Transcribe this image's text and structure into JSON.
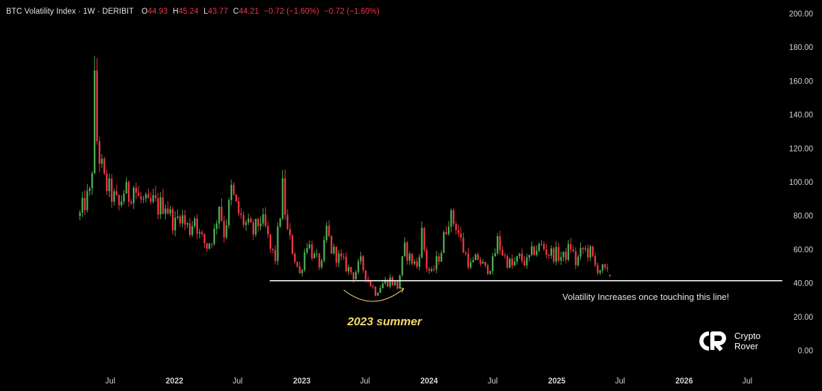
{
  "header": {
    "title": "BTC Volatility Index · 1W · DERIBIT",
    "open_label": "O",
    "open": "44.93",
    "high_label": "H",
    "high": "45.24",
    "low_label": "L",
    "low": "43.77",
    "close_label": "C",
    "close": "44.21",
    "change": "−0.72 (−1.60%)",
    "change2": "−0.72 (−1.60%)"
  },
  "annotations": {
    "support_note": "Volatility Increases once touching this line!",
    "summer_label": "2023 summer"
  },
  "logo": {
    "line1": "Crypto",
    "line2": "Rover",
    "icon": "crypto-rover-logo-icon"
  },
  "colors": {
    "up": "#4caf50",
    "down": "#f23645",
    "background": "#000000",
    "support_line": "#ffffff",
    "summer_label": "#f5d76e",
    "arrow": "#f5d76e"
  },
  "chart_data": {
    "type": "candlestick",
    "timeframe": "1W",
    "ylim": [
      0,
      200
    ],
    "y_ticks": [
      "0.00",
      "20.00",
      "40.00",
      "60.00",
      "80.00",
      "100.00",
      "120.00",
      "140.00",
      "160.00",
      "180.00",
      "200.00"
    ],
    "x_ticks": [
      "Jul",
      "2022",
      "Jul",
      "2023",
      "Jul",
      "2024",
      "Jul",
      "2025",
      "Jul",
      "2026",
      "Jul"
    ],
    "x_tick_values": [
      "2021-07",
      "2022-01",
      "2022-07",
      "2023-01",
      "2023-07",
      "2024-01",
      "2024-07",
      "2025-01",
      "2025-07",
      "2026-01",
      "2026-07"
    ],
    "support_level": 41.5,
    "support_range": [
      "2022-10",
      "2026-11"
    ],
    "last_close": 44.21,
    "closes": [
      [
        "2021-04-05",
        80
      ],
      [
        "2021-04-19",
        88
      ],
      [
        "2021-05-03",
        92
      ],
      [
        "2021-05-10",
        110
      ],
      [
        "2021-05-17",
        157
      ],
      [
        "2021-05-24",
        125
      ],
      [
        "2021-05-31",
        115
      ],
      [
        "2021-06-14",
        100
      ],
      [
        "2021-06-28",
        95
      ],
      [
        "2021-07-12",
        90
      ],
      [
        "2021-07-26",
        85
      ],
      [
        "2021-08-09",
        95
      ],
      [
        "2021-08-23",
        92
      ],
      [
        "2021-09-06",
        98
      ],
      [
        "2021-09-20",
        90
      ],
      [
        "2021-10-04",
        88
      ],
      [
        "2021-10-18",
        85
      ],
      [
        "2021-11-01",
        88
      ],
      [
        "2021-11-15",
        85
      ],
      [
        "2021-12-06",
        88
      ],
      [
        "2021-12-20",
        80
      ],
      [
        "2022-01-03",
        75
      ],
      [
        "2022-01-17",
        82
      ],
      [
        "2022-01-31",
        75
      ],
      [
        "2022-02-14",
        72
      ],
      [
        "2022-02-28",
        80
      ],
      [
        "2022-03-14",
        68
      ],
      [
        "2022-04-04",
        62
      ],
      [
        "2022-04-25",
        70
      ],
      [
        "2022-05-09",
        88
      ],
      [
        "2022-05-23",
        70
      ],
      [
        "2022-06-06",
        85
      ],
      [
        "2022-06-13",
        95
      ],
      [
        "2022-06-27",
        85
      ],
      [
        "2022-07-11",
        78
      ],
      [
        "2022-07-25",
        75
      ],
      [
        "2022-08-15",
        70
      ],
      [
        "2022-09-05",
        78
      ],
      [
        "2022-09-19",
        72
      ],
      [
        "2022-10-03",
        60
      ],
      [
        "2022-10-17",
        55
      ],
      [
        "2022-11-07",
        96
      ],
      [
        "2022-11-21",
        70
      ],
      [
        "2022-12-05",
        60
      ],
      [
        "2022-12-26",
        45
      ],
      [
        "2023-01-16",
        65
      ],
      [
        "2023-02-06",
        55
      ],
      [
        "2023-02-27",
        50
      ],
      [
        "2023-03-13",
        72
      ],
      [
        "2023-03-27",
        60
      ],
      [
        "2023-04-17",
        55
      ],
      [
        "2023-05-08",
        50
      ],
      [
        "2023-05-29",
        45
      ],
      [
        "2023-06-19",
        52
      ],
      [
        "2023-07-10",
        42
      ],
      [
        "2023-07-31",
        35
      ],
      [
        "2023-08-21",
        40
      ],
      [
        "2023-09-11",
        42
      ],
      [
        "2023-10-02",
        38
      ],
      [
        "2023-10-23",
        60
      ],
      [
        "2023-11-06",
        55
      ],
      [
        "2023-11-27",
        50
      ],
      [
        "2023-12-11",
        70
      ],
      [
        "2023-12-25",
        50
      ],
      [
        "2024-01-08",
        45
      ],
      [
        "2024-02-05",
        60
      ],
      [
        "2024-02-26",
        80
      ],
      [
        "2024-03-18",
        75
      ],
      [
        "2024-04-08",
        60
      ],
      [
        "2024-04-29",
        50
      ],
      [
        "2024-05-20",
        55
      ],
      [
        "2024-06-10",
        48
      ],
      [
        "2024-07-01",
        52
      ],
      [
        "2024-07-15",
        65
      ],
      [
        "2024-08-05",
        55
      ],
      [
        "2024-08-26",
        50
      ],
      [
        "2024-09-16",
        55
      ],
      [
        "2024-10-07",
        52
      ],
      [
        "2024-10-28",
        60
      ],
      [
        "2024-11-18",
        62
      ],
      [
        "2024-12-09",
        58
      ],
      [
        "2024-12-30",
        57
      ],
      [
        "2025-01-20",
        55
      ],
      [
        "2025-02-10",
        62
      ],
      [
        "2025-02-24",
        52
      ],
      [
        "2025-03-17",
        60
      ],
      [
        "2025-04-07",
        58
      ],
      [
        "2025-04-21",
        50
      ],
      [
        "2025-05-12",
        48
      ],
      [
        "2025-06-02",
        44.21
      ]
    ]
  }
}
